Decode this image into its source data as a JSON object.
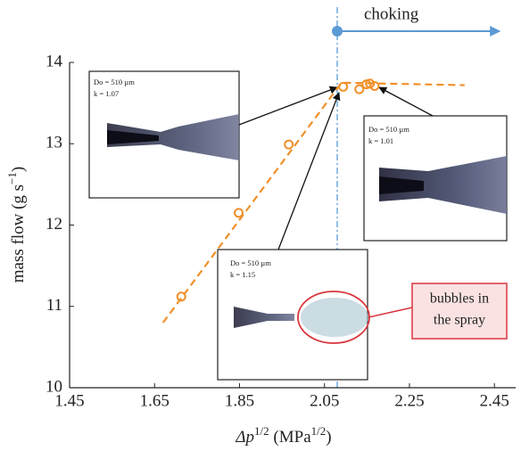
{
  "chart_data": {
    "type": "scatter",
    "xlabel_parts": [
      "Δp",
      "1/2",
      " (MPa",
      "1/2",
      ")"
    ],
    "ylabel_parts": [
      "mass flow (g s",
      "−1",
      ")"
    ],
    "x": [
      1.713,
      1.848,
      1.966,
      2.094,
      2.132,
      2.149,
      2.157,
      2.168
    ],
    "values": [
      11.12,
      12.15,
      12.99,
      13.7,
      13.67,
      13.73,
      13.74,
      13.71
    ],
    "color": "#f0902a",
    "trend": {
      "x": [
        1.67,
        2.09,
        2.38
      ],
      "values": [
        10.8,
        13.75,
        13.72
      ]
    },
    "choking": {
      "label": "choking",
      "x": 2.08,
      "color": "#5b9bd5"
    },
    "insets": [
      {
        "lines": [
          "Do = 510 µm",
          "k = 1.07"
        ]
      },
      {
        "lines": [
          "Do = 510 µm",
          "k = 1.01"
        ]
      },
      {
        "lines": [
          "Do = 510 µm",
          "k = 1.15"
        ]
      }
    ],
    "annotation": [
      "bubbles in",
      "the spray"
    ],
    "xlim": [
      1.45,
      2.5
    ],
    "xticks": [
      1.45,
      1.65,
      1.85,
      2.05,
      2.25,
      2.45
    ],
    "ylim": [
      10,
      14
    ],
    "yticks": [
      10,
      11,
      12,
      13,
      14
    ]
  }
}
